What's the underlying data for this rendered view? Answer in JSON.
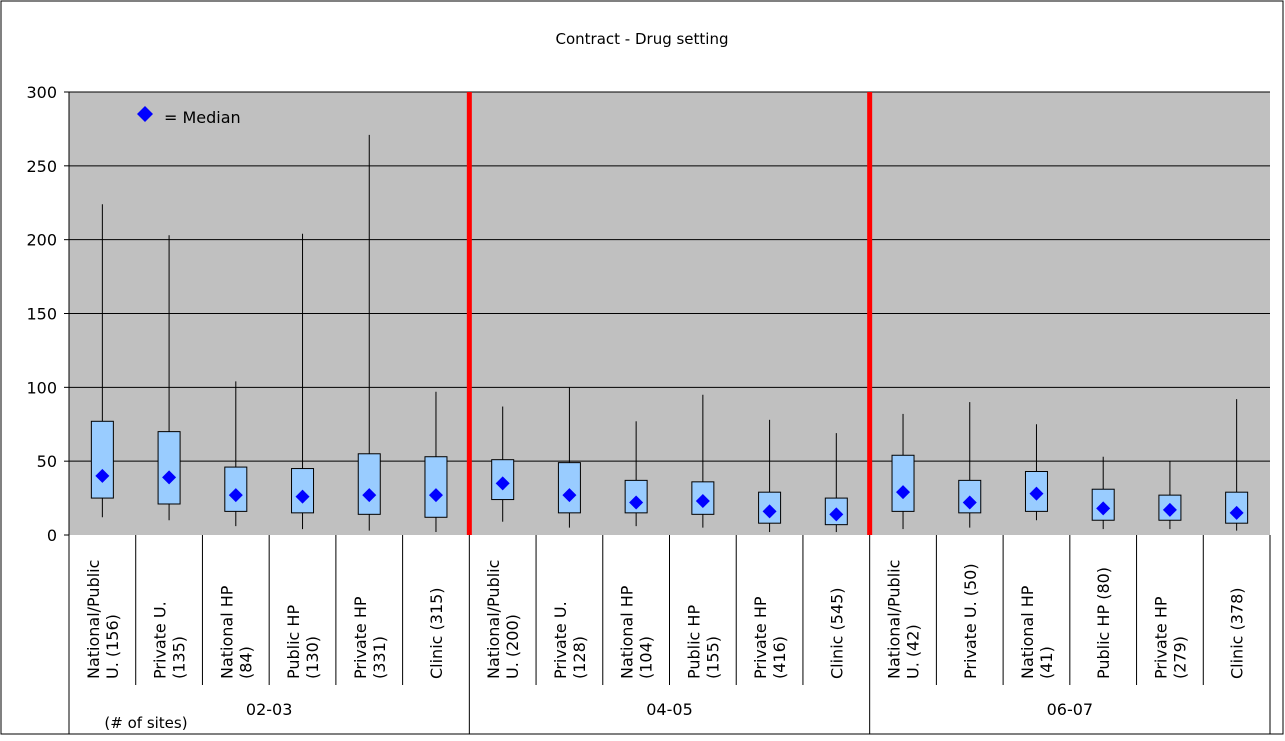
{
  "chart_data": {
    "type": "boxplot",
    "title": "Contract - Drug setting",
    "legend": {
      "marker_label": "= Median",
      "placement": "top-left"
    },
    "ylim": [
      0,
      300
    ],
    "yticks": [
      "0",
      "50",
      "100",
      "150",
      "200",
      "250",
      "300"
    ],
    "grid": true,
    "sites_note": "(# of sites)",
    "groups": [
      {
        "label": "02-03",
        "items": [
          {
            "label": "National/Public U. (156)",
            "lines": [
              "National/Public",
              "U. (156)"
            ],
            "min": 12,
            "q1": 25,
            "median": 40,
            "q3": 77,
            "max": 224
          },
          {
            "label": "Private U. (135)",
            "lines": [
              "Private U.",
              "(135)"
            ],
            "min": 10,
            "q1": 21,
            "median": 39,
            "q3": 70,
            "max": 203
          },
          {
            "label": "National HP (84)",
            "lines": [
              "National HP",
              "(84)"
            ],
            "min": 6,
            "q1": 16,
            "median": 27,
            "q3": 46,
            "max": 104
          },
          {
            "label": "Public HP (130)",
            "lines": [
              "Public HP",
              "(130)"
            ],
            "min": 4,
            "q1": 15,
            "median": 26,
            "q3": 45,
            "max": 204
          },
          {
            "label": "Private HP (331)",
            "lines": [
              "Private HP",
              "(331)"
            ],
            "min": 3,
            "q1": 14,
            "median": 27,
            "q3": 55,
            "max": 271
          },
          {
            "label": "Clinic (315)",
            "lines": [
              "Clinic (315)"
            ],
            "min": 2,
            "q1": 12,
            "median": 27,
            "q3": 53,
            "max": 97
          }
        ]
      },
      {
        "label": "04-05",
        "items": [
          {
            "label": "National/Public U. (200)",
            "lines": [
              "National/Public",
              "U. (200)"
            ],
            "min": 9,
            "q1": 24,
            "median": 35,
            "q3": 51,
            "max": 87
          },
          {
            "label": "Private U. (128)",
            "lines": [
              "Private U.",
              "(128)"
            ],
            "min": 5,
            "q1": 15,
            "median": 27,
            "q3": 49,
            "max": 100
          },
          {
            "label": "National HP (104)",
            "lines": [
              "National HP",
              "(104)"
            ],
            "min": 6,
            "q1": 15,
            "median": 22,
            "q3": 37,
            "max": 77
          },
          {
            "label": "Public HP (155)",
            "lines": [
              "Public HP",
              "(155)"
            ],
            "min": 5,
            "q1": 14,
            "median": 23,
            "q3": 36,
            "max": 95
          },
          {
            "label": "Private HP (416)",
            "lines": [
              "Private HP",
              "(416)"
            ],
            "min": 2,
            "q1": 8,
            "median": 16,
            "q3": 29,
            "max": 78
          },
          {
            "label": "Clinic (545)",
            "lines": [
              "Clinic (545)"
            ],
            "min": 2,
            "q1": 7,
            "median": 14,
            "q3": 25,
            "max": 69
          }
        ]
      },
      {
        "label": "06-07",
        "items": [
          {
            "label": "National/Public U. (42)",
            "lines": [
              "National/Public",
              "U. (42)"
            ],
            "min": 4,
            "q1": 16,
            "median": 29,
            "q3": 54,
            "max": 82
          },
          {
            "label": "Private U. (50)",
            "lines": [
              "Private U. (50)"
            ],
            "min": 5,
            "q1": 15,
            "median": 22,
            "q3": 37,
            "max": 90
          },
          {
            "label": "National HP (41)",
            "lines": [
              "National HP",
              "(41)"
            ],
            "min": 10,
            "q1": 16,
            "median": 28,
            "q3": 43,
            "max": 75
          },
          {
            "label": "Public HP (80)",
            "lines": [
              "Public HP (80)"
            ],
            "min": 4,
            "q1": 10,
            "median": 18,
            "q3": 31,
            "max": 53
          },
          {
            "label": "Private HP (279)",
            "lines": [
              "Private HP",
              "(279)"
            ],
            "min": 4,
            "q1": 10,
            "median": 17,
            "q3": 27,
            "max": 50
          },
          {
            "label": "Clinic (378)",
            "lines": [
              "Clinic (378)"
            ],
            "min": 3,
            "q1": 8,
            "median": 15,
            "q3": 29,
            "max": 92
          }
        ]
      }
    ],
    "colors": {
      "plot_bg": "#c0c0c0",
      "box_fill": "#99ccff",
      "median_marker": "#0000ff",
      "group_separator": "#ff0000",
      "gridline": "#000000"
    }
  }
}
